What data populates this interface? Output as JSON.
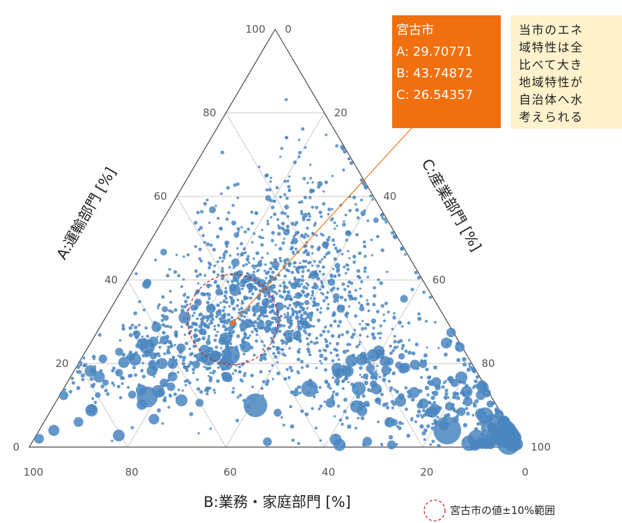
{
  "chart_data": {
    "type": "ternary-scatter",
    "title": "",
    "axes": {
      "a": {
        "label": "A:運輸部門 [%]",
        "range": [
          0,
          100
        ],
        "ticks": [
          "0",
          "20",
          "40",
          "60",
          "80",
          "100"
        ]
      },
      "b": {
        "label": "B:業務・家庭部門 [%]",
        "range": [
          0,
          100
        ],
        "ticks": [
          "100",
          "80",
          "60",
          "40",
          "20",
          "0"
        ]
      },
      "c": {
        "label": "C:産業部門 [%]",
        "range": [
          0,
          100
        ],
        "ticks": [
          "0",
          "20",
          "40",
          "60",
          "80",
          "100"
        ]
      }
    },
    "grid": true,
    "colors": {
      "points": "#4a86c0",
      "highlight": "#f07010",
      "range_circle": "#d02020",
      "note_bg": "#fff2cc"
    },
    "highlight": {
      "name": "宮古市",
      "a": 29.70771,
      "b": 43.74872,
      "c": 26.54357,
      "lines": [
        "宮古市",
        "A: 29.70771",
        "B: 43.74872",
        "C: 26.54357"
      ]
    },
    "range_circle": {
      "center": "宮古市",
      "radius_pct": 10
    },
    "legend": {
      "label": "宮古市の値±10%範囲",
      "placement": "bottom-right"
    },
    "point_clusters": [
      {
        "a": 32,
        "c": 30,
        "spread": 9,
        "count": 650,
        "size": "small"
      },
      {
        "a": 45,
        "c": 30,
        "spread": 10,
        "count": 280,
        "size": "small"
      },
      {
        "a": 58,
        "c": 20,
        "spread": 9,
        "count": 110,
        "size": "small"
      },
      {
        "a": 24,
        "c": 20,
        "spread": 8,
        "count": 200,
        "size": "mixed"
      },
      {
        "a": 16,
        "c": 62,
        "spread": 8,
        "count": 220,
        "size": "mixed"
      },
      {
        "a": 10,
        "c": 80,
        "spread": 5,
        "count": 150,
        "size": "mixed"
      },
      {
        "a": 3,
        "c": 95,
        "spread": 2.5,
        "count": 140,
        "size": "large"
      },
      {
        "a": 18,
        "c": 5,
        "spread": 5,
        "count": 45,
        "size": "mixed"
      },
      {
        "a": 27,
        "c": 45,
        "spread": 8,
        "count": 170,
        "size": "small"
      }
    ],
    "large_points": [
      {
        "a": 22,
        "c": 30,
        "r": 13
      },
      {
        "a": 20,
        "c": 30,
        "r": 10
      },
      {
        "a": 10,
        "c": 41,
        "r": 17
      },
      {
        "a": 14,
        "c": 50,
        "r": 12
      },
      {
        "a": 14,
        "c": 60,
        "r": 10
      },
      {
        "a": 11,
        "c": 70,
        "r": 8
      },
      {
        "a": 9,
        "c": 78,
        "r": 8
      },
      {
        "a": 4,
        "c": 83,
        "r": 20
      },
      {
        "a": 2,
        "c": 90,
        "r": 13
      },
      {
        "a": 1,
        "c": 97,
        "r": 17
      },
      {
        "a": 12,
        "c": 18,
        "r": 15
      },
      {
        "a": 21,
        "c": 11,
        "r": 9
      },
      {
        "a": 24,
        "c": 12,
        "r": 11
      },
      {
        "a": 20,
        "c": 17,
        "r": 8
      },
      {
        "a": 4,
        "c": 3,
        "r": 8
      },
      {
        "a": 6,
        "c": 7,
        "r": 7
      },
      {
        "a": 2,
        "c": 1,
        "r": 7
      },
      {
        "a": 19,
        "c": 67,
        "r": 7
      },
      {
        "a": 21,
        "c": 26,
        "r": 9
      },
      {
        "a": 24,
        "c": 32,
        "r": 8
      }
    ],
    "note": {
      "lines": [
        "当市のエネ",
        "域特性は全",
        "比べて大き",
        "地域特性が",
        "自治体へ水",
        "考えられる"
      ]
    }
  }
}
